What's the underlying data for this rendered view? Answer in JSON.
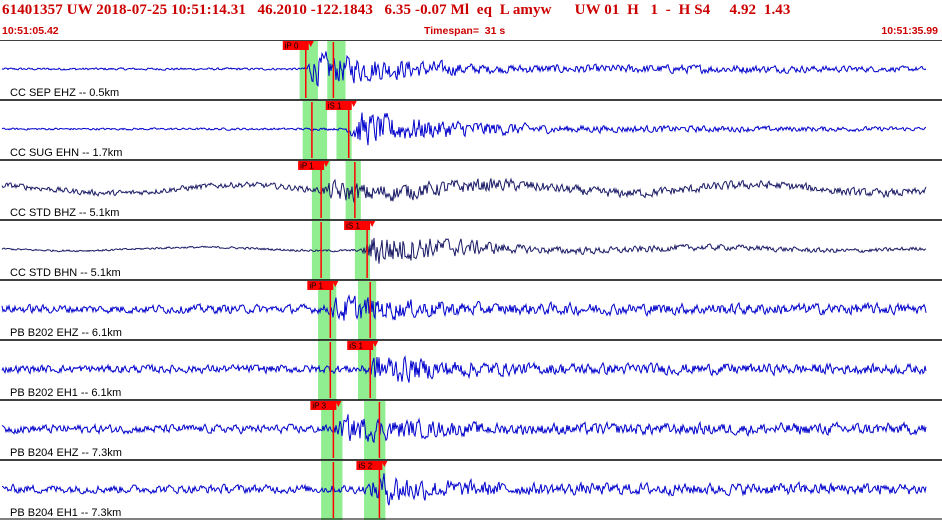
{
  "header": {
    "title": "61401357 UW 2018-07-25 10:51:14.31   46.2010 -122.1843   6.35 -0.07 Ml  eq  L amyw      UW 01  H   1  -  H S4     4.92  1.43",
    "start_time": "10:51:05.42",
    "timespan": "Timespan=  31 s",
    "end_time": "10:51:35.99"
  },
  "colors": {
    "title": "#cc0000",
    "trace_blue": "#0000cc",
    "trace_dark": "#1a1a66",
    "pick_fill": "#ff0000",
    "window_fill": "#90ee90"
  },
  "timeline": {
    "start_s": 0,
    "end_s": 30.57
  },
  "channels": [
    {
      "label": "CC SEP EHZ -- 0.5km",
      "color": "trace_blue",
      "lowfreq": false,
      "noise": 0.05,
      "picks": [
        {
          "phase": "P",
          "label": "iP 0",
          "t": 9.9,
          "window": [
            9.7,
            10.1
          ]
        },
        {
          "phase": "S",
          "label": "",
          "t": 10.8,
          "window": [
            10.6,
            11.0
          ]
        }
      ],
      "amp_env": [
        [
          0,
          0.06
        ],
        [
          9.8,
          0.06
        ],
        [
          10.2,
          0.85
        ],
        [
          12.5,
          0.55
        ],
        [
          16,
          0.22
        ],
        [
          23,
          0.22
        ],
        [
          30.5,
          0.12
        ]
      ]
    },
    {
      "label": "CC SUG EHN -- 1.7km",
      "color": "trace_blue",
      "lowfreq": false,
      "noise": 0.04,
      "picks": [
        {
          "phase": "P",
          "label": "",
          "t": 10.1,
          "window": [
            9.8,
            10.4
          ]
        },
        {
          "phase": "S",
          "label": "iS 1",
          "t": 11.3,
          "window": [
            10.9,
            11.2
          ]
        }
      ],
      "amp_env": [
        [
          0,
          0.05
        ],
        [
          11.2,
          0.06
        ],
        [
          11.6,
          0.9
        ],
        [
          14,
          0.5
        ],
        [
          18,
          0.2
        ],
        [
          30.5,
          0.1
        ]
      ]
    },
    {
      "label": "CC STD BHZ -- 5.1km",
      "color": "trace_dark",
      "lowfreq": true,
      "noise": 0.12,
      "picks": [
        {
          "phase": "P",
          "label": "iP 1",
          "t": 10.4,
          "window": [
            10.1,
            10.5
          ]
        },
        {
          "phase": "S",
          "label": "",
          "t": 11.5,
          "window": [
            11.2,
            11.5
          ]
        }
      ],
      "amp_env": [
        [
          0,
          0.15
        ],
        [
          10.3,
          0.15
        ],
        [
          10.8,
          0.55
        ],
        [
          14,
          0.4
        ],
        [
          18,
          0.25
        ],
        [
          30.5,
          0.2
        ]
      ]
    },
    {
      "label": "CC STD BHN -- 5.1km",
      "color": "trace_dark",
      "lowfreq": true,
      "noise": 0.05,
      "picks": [
        {
          "phase": "P",
          "label": "",
          "t": 10.4,
          "window": [
            10.1,
            10.5
          ]
        },
        {
          "phase": "S",
          "label": "iS 1",
          "t": 11.9,
          "window": [
            11.5,
            11.8
          ]
        }
      ],
      "amp_env": [
        [
          0,
          0.05
        ],
        [
          11.7,
          0.06
        ],
        [
          12.1,
          0.9
        ],
        [
          14,
          0.55
        ],
        [
          17,
          0.2
        ],
        [
          30.5,
          0.1
        ]
      ]
    },
    {
      "label": "PB B202 EHZ -- 6.1km",
      "color": "trace_blue",
      "lowfreq": false,
      "noise": 0.22,
      "picks": [
        {
          "phase": "P",
          "label": "iP 1",
          "t": 10.7,
          "window": [
            10.3,
            10.7
          ]
        },
        {
          "phase": "S",
          "label": "",
          "t": 12.0,
          "window": [
            11.6,
            12.0
          ]
        }
      ],
      "amp_env": [
        [
          0,
          0.22
        ],
        [
          10.6,
          0.22
        ],
        [
          11.0,
          0.75
        ],
        [
          13,
          0.5
        ],
        [
          16,
          0.3
        ],
        [
          30.5,
          0.28
        ]
      ]
    },
    {
      "label": "PB B202 EH1 -- 6.1km",
      "color": "trace_blue",
      "lowfreq": false,
      "noise": 0.2,
      "picks": [
        {
          "phase": "P",
          "label": "",
          "t": 10.7,
          "window": [
            10.3,
            10.7
          ]
        },
        {
          "phase": "S",
          "label": "iS 1",
          "t": 12.0,
          "window": [
            11.6,
            12.0
          ]
        }
      ],
      "amp_env": [
        [
          0,
          0.2
        ],
        [
          11.8,
          0.22
        ],
        [
          12.2,
          0.85
        ],
        [
          14,
          0.5
        ],
        [
          17,
          0.3
        ],
        [
          30.5,
          0.25
        ]
      ]
    },
    {
      "label": "PB B204 EHZ -- 7.3km",
      "color": "trace_blue",
      "lowfreq": false,
      "noise": 0.22,
      "picks": [
        {
          "phase": "P",
          "label": "iP 3",
          "t": 10.8,
          "window": [
            10.4,
            10.9
          ]
        },
        {
          "phase": "S",
          "label": "",
          "t": 12.3,
          "window": [
            11.8,
            12.3
          ]
        }
      ],
      "amp_env": [
        [
          0,
          0.22
        ],
        [
          10.8,
          0.22
        ],
        [
          11.2,
          0.7
        ],
        [
          13,
          0.5
        ],
        [
          16,
          0.3
        ],
        [
          30.5,
          0.3
        ]
      ]
    },
    {
      "label": "PB B204 EH1 -- 7.3km",
      "color": "trace_blue",
      "lowfreq": false,
      "noise": 0.22,
      "picks": [
        {
          "phase": "P",
          "label": "",
          "t": 10.8,
          "window": [
            10.4,
            10.9
          ]
        },
        {
          "phase": "S",
          "label": "iS 2",
          "t": 12.3,
          "window": [
            11.8,
            12.3
          ]
        }
      ],
      "amp_env": [
        [
          0,
          0.22
        ],
        [
          11.9,
          0.22
        ],
        [
          12.3,
          0.85
        ],
        [
          14,
          0.5
        ],
        [
          17,
          0.3
        ],
        [
          30.5,
          0.3
        ]
      ]
    }
  ]
}
